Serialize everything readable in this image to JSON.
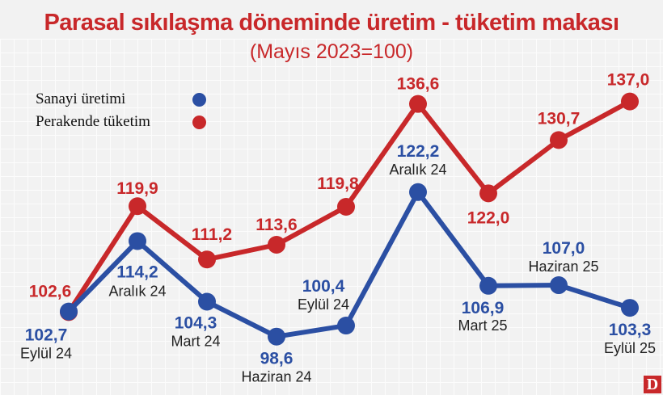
{
  "chart_data": {
    "type": "line",
    "title": "Parasal sıkılaşma döneminde üretim - tüketim makası",
    "subtitle": "(Mayıs 2023=100)",
    "categories": [
      "Eylül 24",
      "Aralık 24",
      "Mart 24",
      "Haziran 24",
      "Eylül 24",
      "Aralık 24",
      "Mart 25",
      "Haziran 25",
      "Eylül 25"
    ],
    "series": [
      {
        "name": "Sanayi üretimi",
        "color": "#2b4fa3",
        "values": [
          102.7,
          114.2,
          104.3,
          98.6,
          100.4,
          122.2,
          106.9,
          107.0,
          103.3
        ],
        "labels": [
          "102,7",
          "114,2",
          "104,3",
          "98,6",
          "100,4",
          "122,2",
          "106,9",
          "107,0",
          "103,3"
        ]
      },
      {
        "name": "Perakende tüketim",
        "color": "#c8282a",
        "values": [
          102.6,
          119.9,
          111.2,
          113.6,
          119.8,
          136.6,
          122.0,
          130.7,
          137.0
        ],
        "labels": [
          "102,6",
          "119,9",
          "111,2",
          "113,6",
          "119,8",
          "136,6",
          "122,0",
          "130,7",
          "137,0"
        ]
      }
    ],
    "legend": "top-left",
    "grid": true
  },
  "logo": "D"
}
